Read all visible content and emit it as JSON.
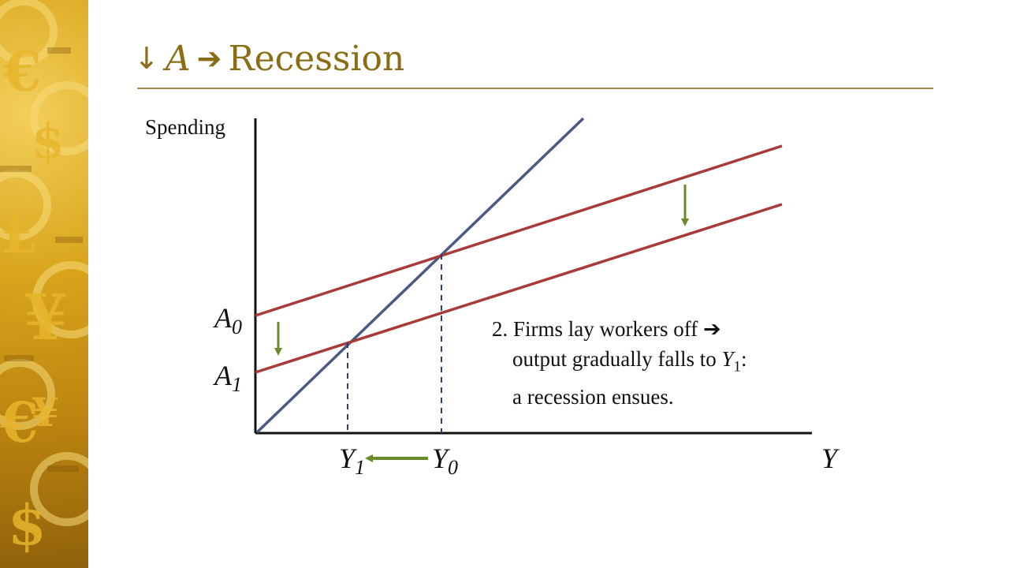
{
  "title": {
    "down_arrow": "↓",
    "variable": "A",
    "right_arrow": "➔",
    "text": "Recession"
  },
  "diagram": {
    "y_axis_label": "Spending",
    "x_axis_label": "Y",
    "labels": {
      "a0": {
        "base": "A",
        "sub": "0"
      },
      "a1": {
        "base": "A",
        "sub": "1"
      },
      "y0": {
        "base": "Y",
        "sub": "0"
      },
      "y1": {
        "base": "Y",
        "sub": "1"
      }
    },
    "annotation": {
      "line1": "2. Firms lay workers off ➔",
      "line2_prefix": "output gradually falls to ",
      "line2_var": "Y",
      "line2_sub": "1",
      "line2_suffix": ":",
      "line3": "a recession ensues."
    }
  },
  "colors": {
    "title": "#8a6d14",
    "forty_five_line": "#4a5a85",
    "spending_lines": "#a83a38",
    "arrows": "#6b8a2a",
    "dashed": "#2f3f70",
    "axes": "#111111"
  }
}
